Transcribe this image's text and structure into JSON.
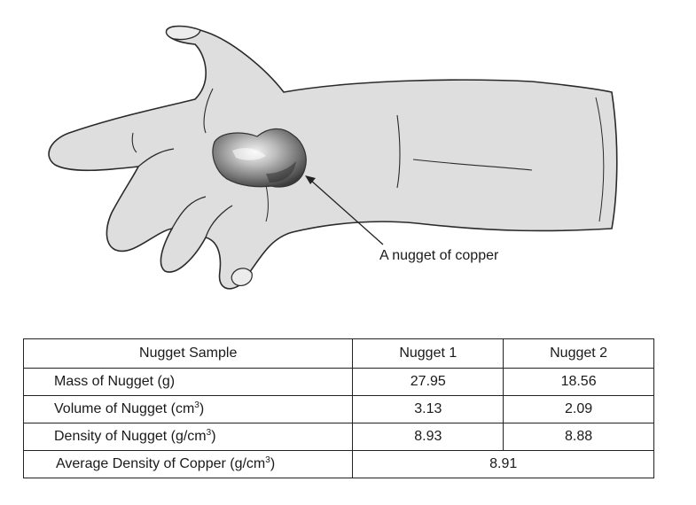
{
  "figure": {
    "callout_label": "A nugget of copper"
  },
  "table": {
    "header": {
      "sample": "Nugget Sample",
      "nugget1": "Nugget 1",
      "nugget2": "Nugget 2"
    },
    "rows": [
      {
        "label": "Mass of Nugget (g)",
        "label_main": "Mass of Nugget (g)",
        "label_sup": "",
        "label_tail": "",
        "nugget1": "27.95",
        "nugget2": "18.56"
      },
      {
        "label_main": "Volume of Nugget (cm",
        "label_sup": "3",
        "label_tail": ")",
        "nugget1": "3.13",
        "nugget2": "2.09"
      },
      {
        "label_main": "Density of Nugget (g/cm",
        "label_sup": "3",
        "label_tail": ")",
        "nugget1": "8.93",
        "nugget2": "8.88"
      }
    ],
    "average": {
      "label_main": "Average Density of Copper (g/cm",
      "label_sup": "3",
      "label_tail": ")",
      "value": "8.91"
    }
  }
}
